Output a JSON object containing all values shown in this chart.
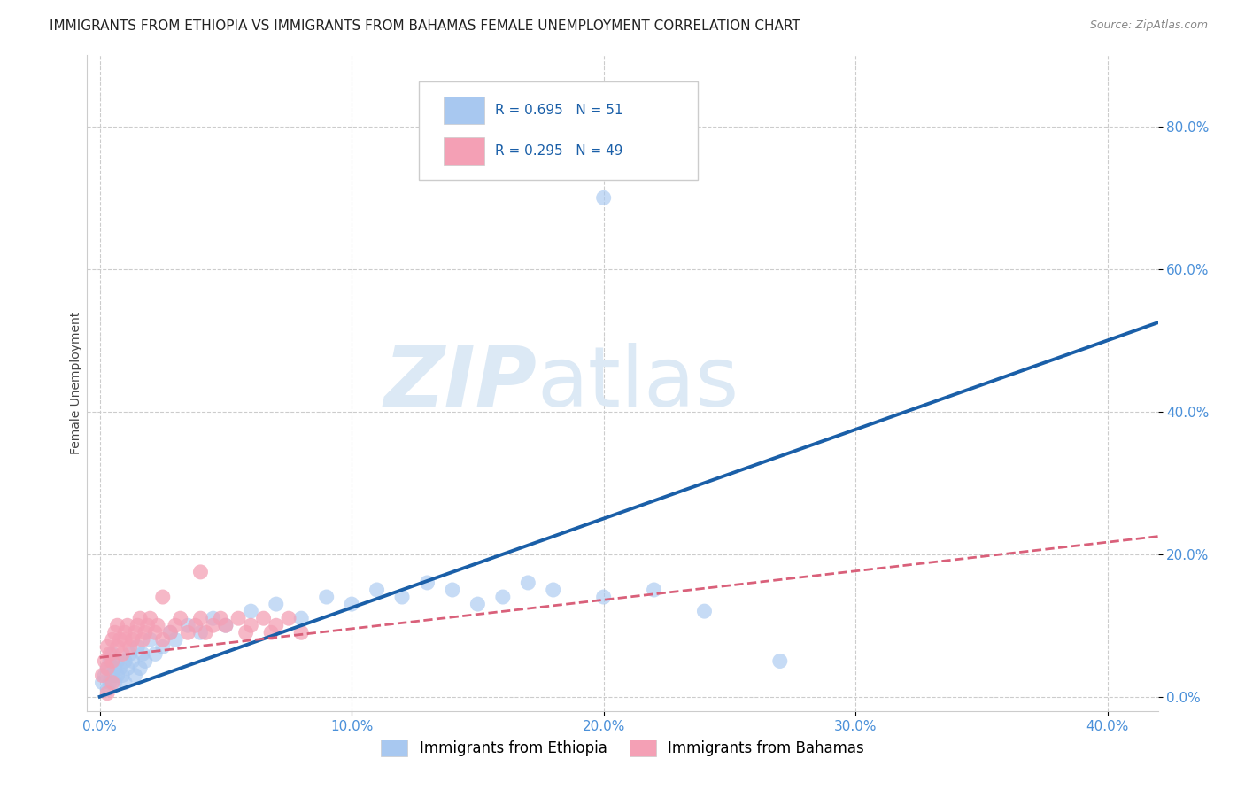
{
  "title": "IMMIGRANTS FROM ETHIOPIA VS IMMIGRANTS FROM BAHAMAS FEMALE UNEMPLOYMENT CORRELATION CHART",
  "source": "Source: ZipAtlas.com",
  "ylabel_label": "Female Unemployment",
  "x_tick_labels": [
    "0.0%",
    "10.0%",
    "20.0%",
    "30.0%",
    "40.0%"
  ],
  "x_tick_values": [
    0.0,
    0.1,
    0.2,
    0.3,
    0.4
  ],
  "y_tick_labels": [
    "0.0%",
    "20.0%",
    "40.0%",
    "60.0%",
    "80.0%"
  ],
  "y_tick_values": [
    0.0,
    0.2,
    0.4,
    0.6,
    0.8
  ],
  "xlim": [
    -0.005,
    0.42
  ],
  "ylim": [
    -0.02,
    0.9
  ],
  "ethiopia_color": "#a8c8f0",
  "bahamas_color": "#f4a0b5",
  "ethiopia_line_color": "#1a5fa8",
  "bahamas_line_color": "#d9607a",
  "legend_ethiopia_R": "R = 0.695",
  "legend_ethiopia_N": "N = 51",
  "legend_bahamas_R": "R = 0.295",
  "legend_bahamas_N": "N = 49",
  "watermark_zip": "ZIP",
  "watermark_atlas": "atlas",
  "watermark_color": "#dce9f5",
  "ethiopia_scatter_x": [
    0.001,
    0.002,
    0.003,
    0.003,
    0.004,
    0.004,
    0.005,
    0.005,
    0.006,
    0.006,
    0.007,
    0.007,
    0.008,
    0.009,
    0.01,
    0.01,
    0.011,
    0.012,
    0.013,
    0.014,
    0.015,
    0.016,
    0.017,
    0.018,
    0.02,
    0.022,
    0.025,
    0.028,
    0.03,
    0.035,
    0.04,
    0.045,
    0.05,
    0.06,
    0.07,
    0.08,
    0.09,
    0.1,
    0.11,
    0.12,
    0.13,
    0.14,
    0.15,
    0.16,
    0.17,
    0.18,
    0.2,
    0.22,
    0.24,
    0.27,
    0.2
  ],
  "ethiopia_scatter_y": [
    0.02,
    0.03,
    0.01,
    0.04,
    0.02,
    0.05,
    0.03,
    0.06,
    0.02,
    0.04,
    0.03,
    0.05,
    0.04,
    0.03,
    0.05,
    0.02,
    0.04,
    0.06,
    0.05,
    0.03,
    0.07,
    0.04,
    0.06,
    0.05,
    0.08,
    0.06,
    0.07,
    0.09,
    0.08,
    0.1,
    0.09,
    0.11,
    0.1,
    0.12,
    0.13,
    0.11,
    0.14,
    0.13,
    0.15,
    0.14,
    0.16,
    0.15,
    0.13,
    0.14,
    0.16,
    0.15,
    0.14,
    0.15,
    0.12,
    0.05,
    0.7
  ],
  "bahamas_scatter_x": [
    0.001,
    0.002,
    0.003,
    0.003,
    0.004,
    0.005,
    0.005,
    0.006,
    0.007,
    0.007,
    0.008,
    0.009,
    0.01,
    0.011,
    0.012,
    0.013,
    0.014,
    0.015,
    0.016,
    0.017,
    0.018,
    0.019,
    0.02,
    0.022,
    0.023,
    0.025,
    0.028,
    0.03,
    0.032,
    0.035,
    0.038,
    0.04,
    0.042,
    0.045,
    0.048,
    0.05,
    0.055,
    0.058,
    0.06,
    0.065,
    0.068,
    0.07,
    0.075,
    0.08,
    0.04,
    0.025,
    0.01,
    0.005,
    0.003
  ],
  "bahamas_scatter_y": [
    0.03,
    0.05,
    0.04,
    0.07,
    0.06,
    0.08,
    0.05,
    0.09,
    0.07,
    0.1,
    0.08,
    0.06,
    0.09,
    0.1,
    0.07,
    0.08,
    0.09,
    0.1,
    0.11,
    0.08,
    0.09,
    0.1,
    0.11,
    0.09,
    0.1,
    0.08,
    0.09,
    0.1,
    0.11,
    0.09,
    0.1,
    0.11,
    0.09,
    0.1,
    0.11,
    0.1,
    0.11,
    0.09,
    0.1,
    0.11,
    0.09,
    0.1,
    0.11,
    0.09,
    0.175,
    0.14,
    0.08,
    0.02,
    0.005
  ],
  "ethiopia_trendline_x": [
    0.0,
    0.42
  ],
  "ethiopia_trendline_y": [
    0.0,
    0.525
  ],
  "bahamas_trendline_x": [
    0.0,
    0.42
  ],
  "bahamas_trendline_y": [
    0.055,
    0.225
  ],
  "background_color": "#ffffff",
  "grid_color": "#cccccc",
  "title_fontsize": 11,
  "axis_label_fontsize": 10,
  "tick_fontsize": 11,
  "tick_color": "#4a90d9"
}
